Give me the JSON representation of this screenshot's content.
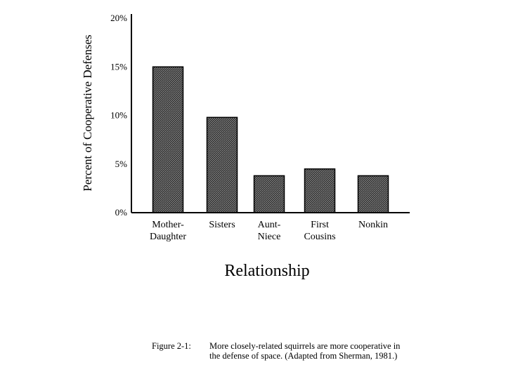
{
  "chart_data": {
    "type": "bar",
    "categories": [
      [
        "Mother-",
        "Daughter"
      ],
      [
        "Sisters"
      ],
      [
        "Aunt-",
        "Niece"
      ],
      [
        "First",
        "Cousins"
      ],
      [
        "Nonkin"
      ]
    ],
    "values": [
      15,
      9.8,
      3.8,
      4.5,
      3.8
    ],
    "y_ticks": [
      "0%",
      "5%",
      "10%",
      "15%",
      "20%"
    ],
    "y_tick_values": [
      0,
      5,
      10,
      15,
      20
    ],
    "ylim": [
      0,
      20
    ],
    "ylabel": "Percent of Cooperative Defenses",
    "xlabel": "Relationship",
    "grid": false,
    "bar_color": "#3a3a3a"
  },
  "caption": {
    "label": "Figure 2-1:",
    "text": "More closely-related squirrels are more cooperative in the defense of space. (Adapted from Sherman, 1981.)"
  }
}
